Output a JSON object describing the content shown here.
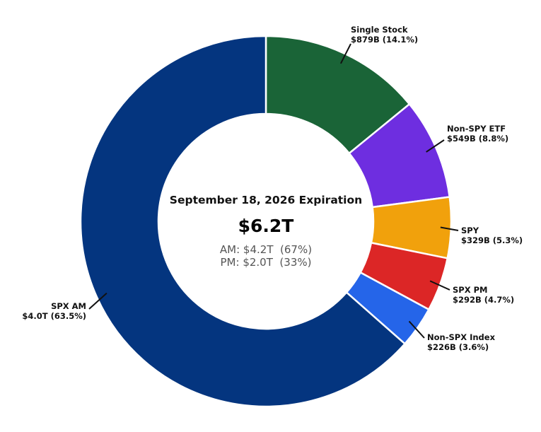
{
  "chart_data": {
    "type": "pie",
    "donut": true,
    "center": {
      "title": "September 18, 2026 Expiration",
      "total": "$6.2T",
      "lines": [
        "AM: $4.2T  (67%)",
        "PM: $2.0T  (33%)"
      ]
    },
    "slices": [
      {
        "name": "Single Stock",
        "value_label": "$879B (14.1%)",
        "value": 879,
        "percent": 14.1,
        "color": "#1a6437"
      },
      {
        "name": "Non-SPY ETF",
        "value_label": "$549B (8.8%)",
        "value": 549,
        "percent": 8.8,
        "color": "#6e2ee0"
      },
      {
        "name": "SPY",
        "value_label": "$329B (5.3%)",
        "value": 329,
        "percent": 5.3,
        "color": "#f1a10c"
      },
      {
        "name": "SPX PM",
        "value_label": "$292B (4.7%)",
        "value": 292,
        "percent": 4.7,
        "color": "#dc2626"
      },
      {
        "name": "Non-SPX Index",
        "value_label": "$226B (3.6%)",
        "value": 226,
        "percent": 3.6,
        "color": "#2565e9"
      },
      {
        "name": "SPX AM",
        "value_label": "$4.0T (63.5%)",
        "value": 4000,
        "percent": 63.5,
        "color": "#04357f"
      }
    ],
    "legend": "none",
    "start": "top",
    "direction": "clockwise"
  }
}
